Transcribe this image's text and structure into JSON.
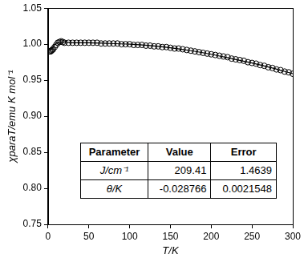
{
  "chart_data": {
    "type": "scatter",
    "x_label": "T/K",
    "y_label": "χparaT/emu K mol⁻¹",
    "xlim": [
      0,
      300
    ],
    "xticks": [
      0,
      50,
      100,
      150,
      200,
      250,
      300
    ],
    "ylim": [
      0.75,
      1.05
    ],
    "yticks": [
      0.75,
      {
        "value": 0.8,
        "label": "0.80"
      },
      0.85,
      {
        "value": 0.9,
        "label": "0.90"
      },
      0.95,
      {
        "value": 1.0,
        "label": "1.00"
      },
      1.05
    ],
    "grid": false,
    "series": [
      {
        "type": "scatter",
        "marker": "open_circle",
        "color": "#000000",
        "x": [
          2,
          3,
          4,
          5,
          6,
          8,
          10,
          12,
          14,
          16,
          18,
          20,
          25,
          30,
          35,
          40,
          45,
          50,
          55,
          60,
          65,
          70,
          75,
          80,
          85,
          90,
          95,
          100,
          105,
          110,
          115,
          120,
          125,
          130,
          135,
          140,
          145,
          150,
          155,
          160,
          165,
          170,
          175,
          180,
          185,
          190,
          195,
          200,
          205,
          210,
          215,
          220,
          225,
          230,
          235,
          240,
          245,
          250,
          255,
          260,
          265,
          270,
          275,
          280,
          285,
          290,
          295,
          300
        ],
        "values": [
          0.99,
          0.99,
          0.991,
          0.992,
          0.993,
          0.996,
          0.999,
          1.002,
          1.003,
          1.004,
          1.003,
          1.002,
          1.002,
          1.002,
          1.002,
          1.002,
          1.002,
          1.002,
          1.002,
          1.002,
          1.001,
          1.001,
          1.001,
          1.001,
          1.001,
          1.0,
          1.0,
          1.0,
          0.999,
          0.999,
          0.999,
          0.998,
          0.998,
          0.997,
          0.997,
          0.996,
          0.996,
          0.995,
          0.994,
          0.994,
          0.993,
          0.992,
          0.991,
          0.99,
          0.989,
          0.988,
          0.987,
          0.986,
          0.985,
          0.984,
          0.983,
          0.982,
          0.98,
          0.979,
          0.978,
          0.977,
          0.975,
          0.974,
          0.973,
          0.971,
          0.97,
          0.968,
          0.967,
          0.965,
          0.964,
          0.962,
          0.961,
          0.959
        ]
      },
      {
        "type": "line",
        "line_style": "solid",
        "color": "#000000",
        "x": [
          2,
          5,
          10,
          15,
          20,
          30,
          50,
          75,
          100,
          125,
          150,
          175,
          200,
          225,
          250,
          275,
          300
        ],
        "values": [
          0.991,
          0.995,
          1.001,
          1.003,
          1.003,
          1.002,
          1.002,
          1.001,
          1.0,
          0.998,
          0.995,
          0.991,
          0.986,
          0.98,
          0.974,
          0.967,
          0.959
        ]
      }
    ],
    "table": {
      "header": [
        "Parameter",
        "Value",
        "Error"
      ],
      "rows": [
        [
          "J/cm⁻¹",
          "209.41",
          "1.4639"
        ],
        [
          "θ/K",
          "-0.028766",
          "0.0021548"
        ]
      ]
    }
  }
}
